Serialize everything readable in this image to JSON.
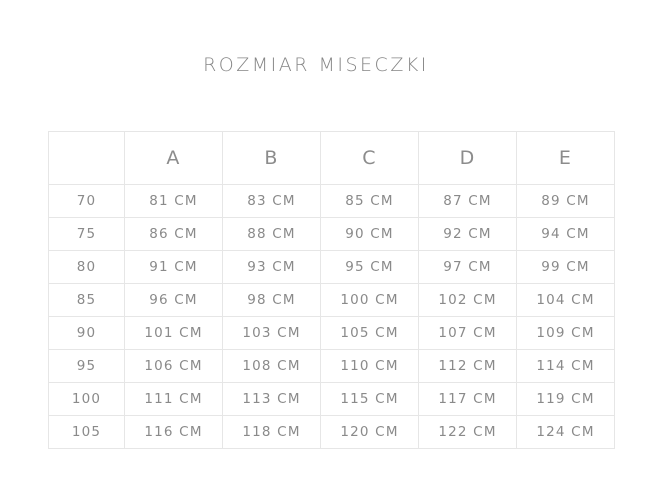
{
  "title": "ROZMIAR MISECZKI",
  "columns": [
    "",
    "A",
    "B",
    "C",
    "D",
    "E"
  ],
  "rows": [
    {
      "band": "70",
      "values": [
        "81 CM",
        "83 CM",
        "85 CM",
        "87 CM",
        "89 CM"
      ]
    },
    {
      "band": "75",
      "values": [
        "86 CM",
        "88 CM",
        "90 CM",
        "92 CM",
        "94 CM"
      ]
    },
    {
      "band": "80",
      "values": [
        "91 CM",
        "93 CM",
        "95 CM",
        "97 CM",
        "99 CM"
      ]
    },
    {
      "band": "85",
      "values": [
        "96 CM",
        "98 CM",
        "100 CM",
        "102 CM",
        "104 CM"
      ]
    },
    {
      "band": "90",
      "values": [
        "101 CM",
        "103 CM",
        "105 CM",
        "107 CM",
        "109 CM"
      ]
    },
    {
      "band": "95",
      "values": [
        "106 CM",
        "108 CM",
        "110 CM",
        "112 CM",
        "114 CM"
      ]
    },
    {
      "band": "100",
      "values": [
        "111 CM",
        "113 CM",
        "115 CM",
        "117 CM",
        "119 CM"
      ]
    },
    {
      "band": "105",
      "values": [
        "116 CM",
        "118 CM",
        "120 CM",
        "122 CM",
        "124 CM"
      ]
    }
  ]
}
